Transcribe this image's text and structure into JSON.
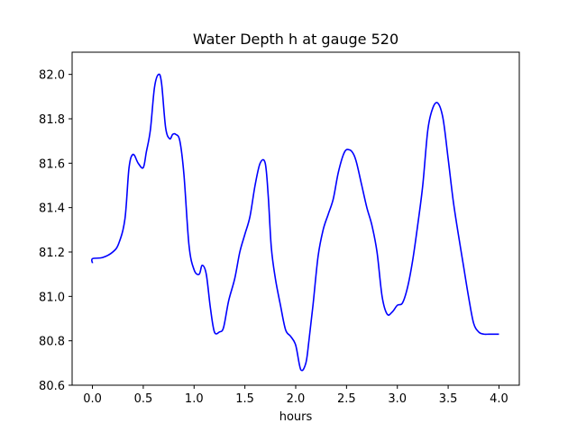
{
  "chart_data": {
    "type": "line",
    "title": "Water Depth h at gauge 520",
    "xlabel": "hours",
    "ylabel": "",
    "xlim": [
      -0.2,
      4.2
    ],
    "ylim": [
      80.6,
      82.1
    ],
    "grid": false,
    "xticks": [
      0.0,
      0.5,
      1.0,
      1.5,
      2.0,
      2.5,
      3.0,
      3.5,
      4.0
    ],
    "xtick_labels": [
      "0.0",
      "0.5",
      "1.0",
      "1.5",
      "2.0",
      "2.5",
      "3.0",
      "3.5",
      "4.0"
    ],
    "yticks": [
      80.6,
      80.8,
      81.0,
      81.2,
      81.4,
      81.6,
      81.8,
      82.0
    ],
    "ytick_labels": [
      "80.6",
      "80.8",
      "81.0",
      "81.2",
      "81.4",
      "81.6",
      "81.8",
      "82.0"
    ],
    "series": [
      {
        "color": "#0000ff",
        "x": [
          0.0,
          0.0,
          0.1,
          0.2,
          0.26,
          0.32,
          0.36,
          0.4,
          0.45,
          0.5,
          0.53,
          0.57,
          0.61,
          0.65,
          0.68,
          0.72,
          0.76,
          0.79,
          0.82,
          0.86,
          0.9,
          0.95,
          1.0,
          1.05,
          1.08,
          1.12,
          1.16,
          1.2,
          1.25,
          1.29,
          1.34,
          1.4,
          1.45,
          1.5,
          1.55,
          1.6,
          1.65,
          1.7,
          1.73,
          1.76,
          1.8,
          1.85,
          1.9,
          1.95,
          2.0,
          2.05,
          2.1,
          2.13,
          2.17,
          2.22,
          2.27,
          2.32,
          2.37,
          2.42,
          2.48,
          2.53,
          2.57,
          2.6,
          2.65,
          2.7,
          2.75,
          2.8,
          2.85,
          2.9,
          2.95,
          3.0,
          3.05,
          3.1,
          3.15,
          3.2,
          3.25,
          3.3,
          3.35,
          3.4,
          3.45,
          3.5,
          3.55,
          3.6,
          3.65,
          3.7,
          3.75,
          3.8,
          3.85,
          3.9,
          3.95,
          4.0
        ],
        "y": [
          81.15,
          81.17,
          81.175,
          81.2,
          81.24,
          81.35,
          81.58,
          81.64,
          81.6,
          81.58,
          81.65,
          81.75,
          81.94,
          82.0,
          81.96,
          81.76,
          81.71,
          81.73,
          81.73,
          81.7,
          81.55,
          81.23,
          81.12,
          81.1,
          81.14,
          81.1,
          80.95,
          80.84,
          80.84,
          80.86,
          80.98,
          81.08,
          81.2,
          81.28,
          81.36,
          81.5,
          81.6,
          81.6,
          81.45,
          81.22,
          81.08,
          80.96,
          80.85,
          80.82,
          80.78,
          80.67,
          80.7,
          80.8,
          80.96,
          81.18,
          81.3,
          81.37,
          81.44,
          81.56,
          81.65,
          81.66,
          81.64,
          81.6,
          81.5,
          81.4,
          81.32,
          81.2,
          81.0,
          80.92,
          80.93,
          80.96,
          80.97,
          81.04,
          81.16,
          81.32,
          81.5,
          81.75,
          81.85,
          81.87,
          81.8,
          81.62,
          81.43,
          81.28,
          81.14,
          81.0,
          80.88,
          80.84,
          80.83,
          80.83,
          80.83,
          80.83
        ]
      }
    ]
  }
}
